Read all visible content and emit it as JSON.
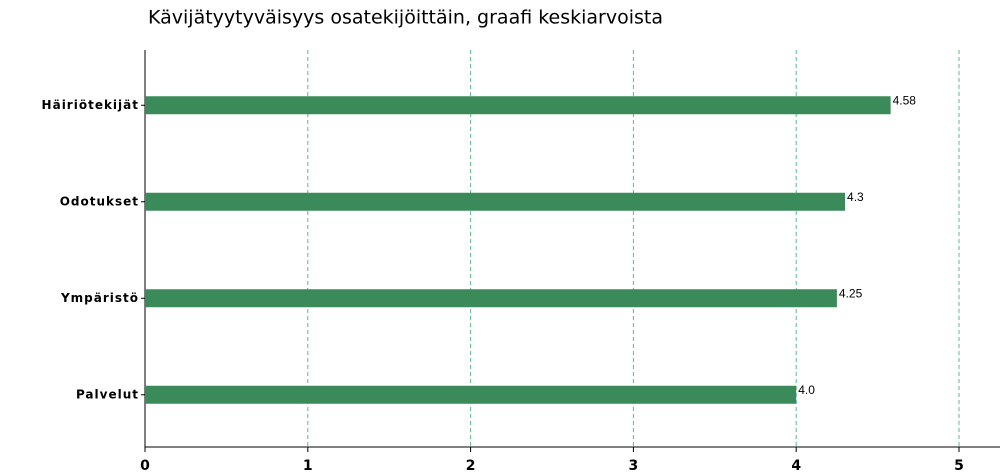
{
  "chart_data": {
    "type": "hbar",
    "title": "Kävijätyytyväisyys osatekijöittäin, graafi keskiarvoista",
    "categories": [
      "Häiriötekijät",
      "Odotukset",
      "Ympäristö",
      "Palvelut"
    ],
    "values": [
      4.58,
      4.3,
      4.25,
      4.0
    ],
    "value_labels": [
      "4.58",
      "4.3",
      "4.25",
      "4.0"
    ],
    "color": "#3a8a5a",
    "xlim": [
      0,
      5
    ],
    "xticks": [
      0,
      1,
      2,
      3,
      4,
      5
    ],
    "grid": true
  }
}
